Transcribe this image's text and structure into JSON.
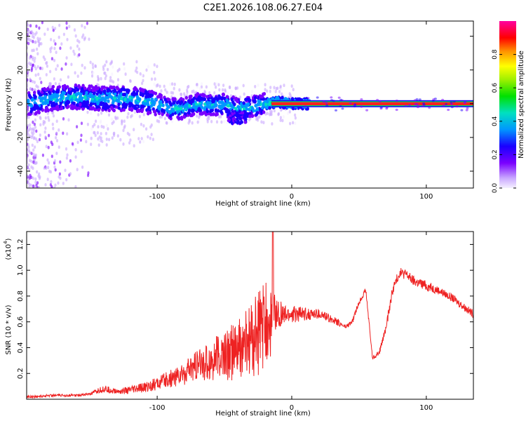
{
  "title": "C2E1.2026.108.06.27.E04",
  "chart_data": [
    {
      "type": "heatmap",
      "name": "spectrogram",
      "xlabel": "Height of straight line (km)",
      "ylabel": "Frequency (Hz)",
      "xlim": [
        -197,
        135
      ],
      "ylim": [
        -50,
        49
      ],
      "xticks": [
        -100,
        0,
        100
      ],
      "xtick_labels": [
        "-100",
        "0",
        "100"
      ],
      "yticks": [
        -40,
        -20,
        0,
        20,
        40
      ],
      "ytick_labels": [
        "-40",
        "-20",
        "0",
        "20",
        "40"
      ],
      "carrier_line_hz": 0,
      "ridge": {
        "x": [
          -195,
          -180,
          -160,
          -140,
          -120,
          -100,
          -90,
          -80,
          -70,
          -60,
          -50,
          -40,
          -30,
          -20,
          -10,
          0,
          10
        ],
        "y": [
          0,
          3,
          4,
          3,
          3,
          0,
          -3,
          -3,
          0,
          -1,
          0,
          -3,
          -2,
          0,
          1,
          0,
          0
        ]
      },
      "colorbar": {
        "label": "Normalized spectral amplitude",
        "range": [
          0,
          1
        ],
        "ticks": [
          0.0,
          0.2,
          0.4,
          0.6,
          0.8
        ],
        "tick_labels": [
          "0.0",
          "0.2",
          "0.4",
          "0.6",
          "0.8"
        ]
      }
    },
    {
      "type": "line",
      "name": "snr",
      "xlabel": "Height of straight line (km)",
      "ylabel": "SNR (10 * v/v)",
      "y_multiplier_label": "(x10",
      "y_multiplier_exp": "4",
      "y_multiplier_close": ")",
      "xlim": [
        -197,
        135
      ],
      "ylim": [
        0,
        1.3
      ],
      "xticks": [
        -100,
        0,
        100
      ],
      "xtick_labels": [
        "-100",
        "0",
        "100"
      ],
      "yticks": [
        0.2,
        0.4,
        0.6,
        0.8,
        1.0,
        1.2
      ],
      "ytick_labels": [
        "0.2",
        "0.4",
        "0.6",
        "0.8",
        "1.0",
        "1.2"
      ],
      "color": "#ee2222",
      "x": [
        -197,
        -190,
        -180,
        -170,
        -160,
        -150,
        -140,
        -130,
        -120,
        -110,
        -100,
        -90,
        -80,
        -70,
        -60,
        -50,
        -40,
        -30,
        -25,
        -20,
        -15,
        -10,
        -5,
        0,
        10,
        20,
        30,
        40,
        45,
        50,
        55,
        60,
        65,
        70,
        75,
        80,
        85,
        90,
        95,
        100,
        110,
        120,
        130,
        135
      ],
      "y": [
        0.02,
        0.02,
        0.03,
        0.03,
        0.03,
        0.04,
        0.08,
        0.06,
        0.07,
        0.09,
        0.12,
        0.16,
        0.2,
        0.26,
        0.3,
        0.34,
        0.38,
        0.45,
        0.52,
        0.56,
        0.62,
        0.66,
        0.65,
        0.66,
        0.66,
        0.66,
        0.62,
        0.56,
        0.6,
        0.75,
        0.85,
        0.32,
        0.36,
        0.55,
        0.85,
        0.98,
        0.97,
        0.92,
        0.9,
        0.88,
        0.84,
        0.78,
        0.7,
        0.66
      ],
      "noise": [
        0.01,
        0.01,
        0.01,
        0.01,
        0.01,
        0.01,
        0.03,
        0.02,
        0.03,
        0.04,
        0.05,
        0.07,
        0.09,
        0.12,
        0.16,
        0.2,
        0.24,
        0.3,
        0.35,
        0.35,
        0.3,
        0.12,
        0.08,
        0.07,
        0.05,
        0.04,
        0.03,
        0.02,
        0.02,
        0.02,
        0.02,
        0.02,
        0.02,
        0.03,
        0.04,
        0.04,
        0.04,
        0.04,
        0.04,
        0.04,
        0.03,
        0.03,
        0.03,
        0.03
      ],
      "spike": {
        "x": -14,
        "y": 1.3
      }
    }
  ]
}
